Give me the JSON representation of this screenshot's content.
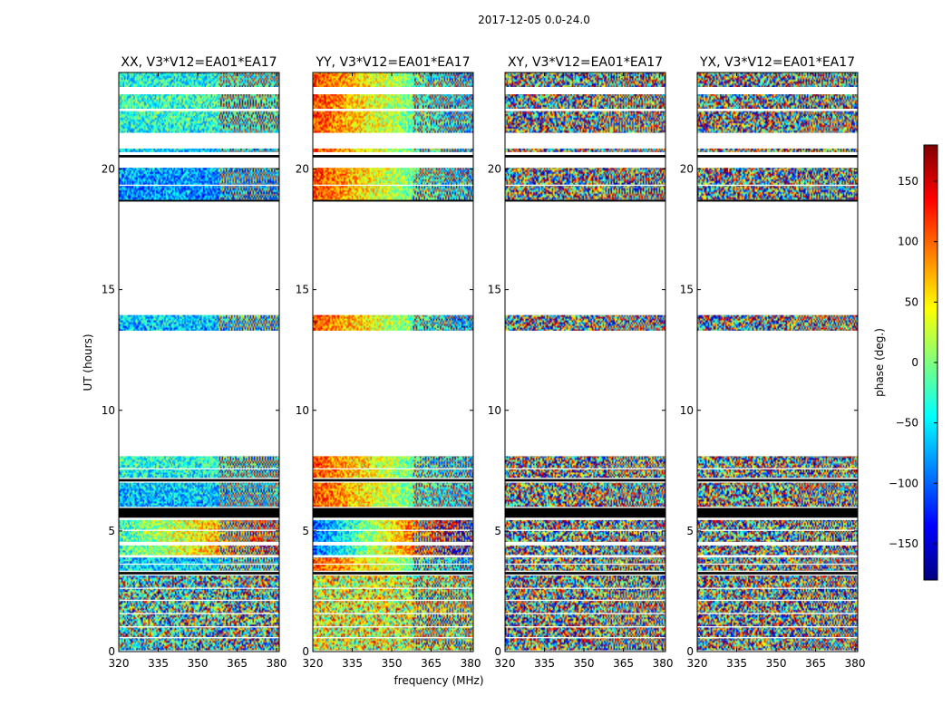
{
  "chart_data": {
    "type": "heatmap",
    "suptitle": "2017-12-05 0.0-24.0",
    "xlabel": "frequency (MHz)",
    "ylabel": "UT (hours)",
    "xlim": [
      320,
      381
    ],
    "ylim": [
      0,
      24
    ],
    "xticks": [
      "320",
      "335",
      "350",
      "365",
      "380"
    ],
    "xtick_values": [
      320,
      335,
      350,
      365,
      380
    ],
    "yticks": [
      "0",
      "5",
      "10",
      "15",
      "20"
    ],
    "ytick_values": [
      0,
      5,
      10,
      15,
      20
    ],
    "panels": [
      {
        "title": "XX, V3*V12=EA01*EA17",
        "mode": "smooth"
      },
      {
        "title": "YY, V3*V12=EA01*EA17",
        "mode": "gradient"
      },
      {
        "title": "XY, V3*V12=EA01*EA17",
        "mode": "noise"
      },
      {
        "title": "YX, V3*V12=EA01*EA17",
        "mode": "noise"
      }
    ],
    "data_blocks_ut_hours": [
      [
        0.05,
        0.55
      ],
      [
        0.6,
        1.0
      ],
      [
        1.05,
        1.55
      ],
      [
        1.6,
        2.1
      ],
      [
        2.15,
        2.6
      ],
      [
        2.65,
        3.15
      ],
      [
        3.35,
        3.6
      ],
      [
        3.65,
        3.9
      ],
      [
        4.0,
        4.4
      ],
      [
        4.55,
        5.0
      ],
      [
        5.05,
        5.45
      ],
      [
        6.0,
        7.0
      ],
      [
        7.2,
        7.55
      ],
      [
        7.6,
        8.1
      ],
      [
        13.3,
        13.95
      ],
      [
        18.7,
        19.3
      ],
      [
        19.35,
        20.05
      ],
      [
        20.7,
        20.85
      ],
      [
        21.5,
        22.4
      ],
      [
        22.5,
        23.1
      ],
      [
        23.4,
        24.0
      ]
    ],
    "black_bands_ut_hours": [
      [
        3.2,
        3.3
      ],
      [
        5.55,
        5.95
      ],
      [
        7.05,
        7.15
      ],
      [
        18.65,
        18.72
      ],
      [
        20.48,
        20.58
      ]
    ],
    "colorbar": {
      "label": "phase (deg.)",
      "range": [
        -180,
        180
      ],
      "ticks": [
        "150",
        "100",
        "50",
        "0",
        "−50",
        "−100",
        "−150"
      ],
      "tick_values": [
        150,
        100,
        50,
        0,
        -50,
        -100,
        -150
      ],
      "colormap": [
        "#00007f",
        "#0000ff",
        "#007fff",
        "#00ffff",
        "#7fff7f",
        "#ffff00",
        "#ff7f00",
        "#ff0000",
        "#7f0000"
      ]
    }
  }
}
